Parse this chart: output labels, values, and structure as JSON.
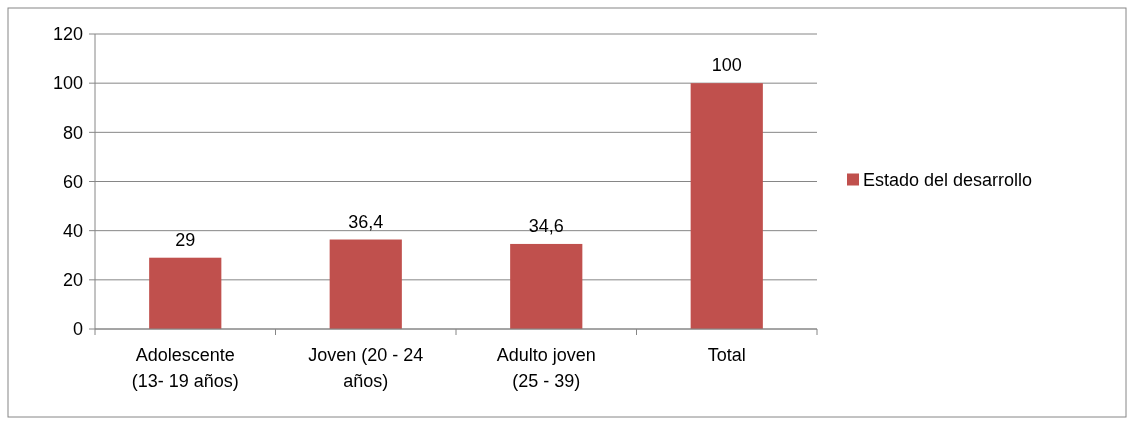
{
  "chart_data": {
    "type": "bar",
    "categories": [
      "Adolescente (13- 19 años)",
      "Joven (20 - 24 años)",
      "Adulto joven (25 - 39)",
      "Total"
    ],
    "series": [
      {
        "name": "Estado del desarrollo",
        "color": "#c0504d",
        "values": [
          29,
          36.4,
          34.6,
          100
        ],
        "value_labels": [
          "29",
          "36,4",
          "34,6",
          "100"
        ]
      }
    ],
    "ylim": [
      0,
      120
    ],
    "yticks": [
      0,
      20,
      40,
      60,
      80,
      100,
      120
    ],
    "grid": "y",
    "legend": "right"
  }
}
